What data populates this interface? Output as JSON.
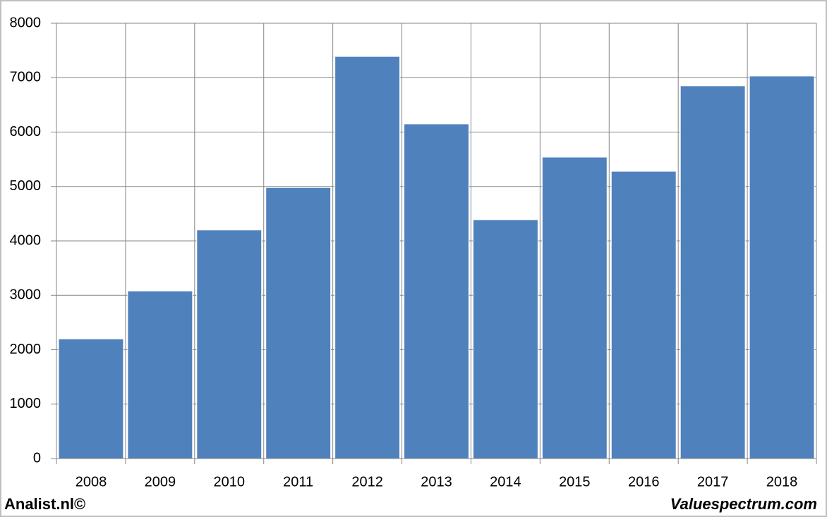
{
  "chart_data": {
    "type": "bar",
    "categories": [
      "2008",
      "2009",
      "2010",
      "2011",
      "2012",
      "2013",
      "2014",
      "2015",
      "2016",
      "2017",
      "2018"
    ],
    "values": [
      2200,
      3080,
      4200,
      4980,
      7390,
      6150,
      4390,
      5540,
      5280,
      6850,
      7030
    ],
    "color": "#4f81bd",
    "ylim": [
      0,
      8000
    ],
    "yticks": [
      0,
      1000,
      2000,
      3000,
      4000,
      5000,
      6000,
      7000,
      8000
    ],
    "grid": true
  },
  "footer": {
    "left": "Analist.nl©",
    "right": "Valuespectrum.com"
  }
}
